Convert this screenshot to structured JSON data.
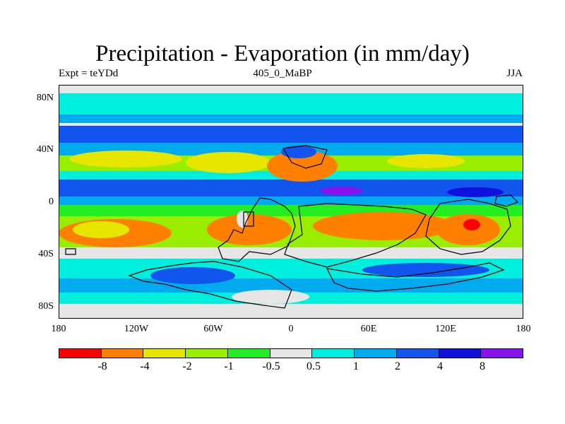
{
  "title": "Precipitation - Evaporation (in mm/day)",
  "experiment": "Expt = teYDd",
  "run_label": "405_0_MaBP",
  "season": "JJA",
  "lat_ticks": [
    "80N",
    "40N",
    "0",
    "40S",
    "80S"
  ],
  "lon_ticks": [
    "180",
    "120W",
    "60W",
    "0",
    "60E",
    "120E",
    "180"
  ],
  "colorbar": {
    "colors": [
      "#ff0000",
      "#ff8000",
      "#e6e600",
      "#99ee00",
      "#22ee22",
      "#e6e6e6",
      "#00eedd",
      "#00aaee",
      "#1155ee",
      "#1111dd",
      "#8811ee"
    ],
    "labels": [
      "-8",
      "-4",
      "-2",
      "-1",
      "-0.5",
      "0.5",
      "1",
      "2",
      "4",
      "8"
    ]
  }
}
